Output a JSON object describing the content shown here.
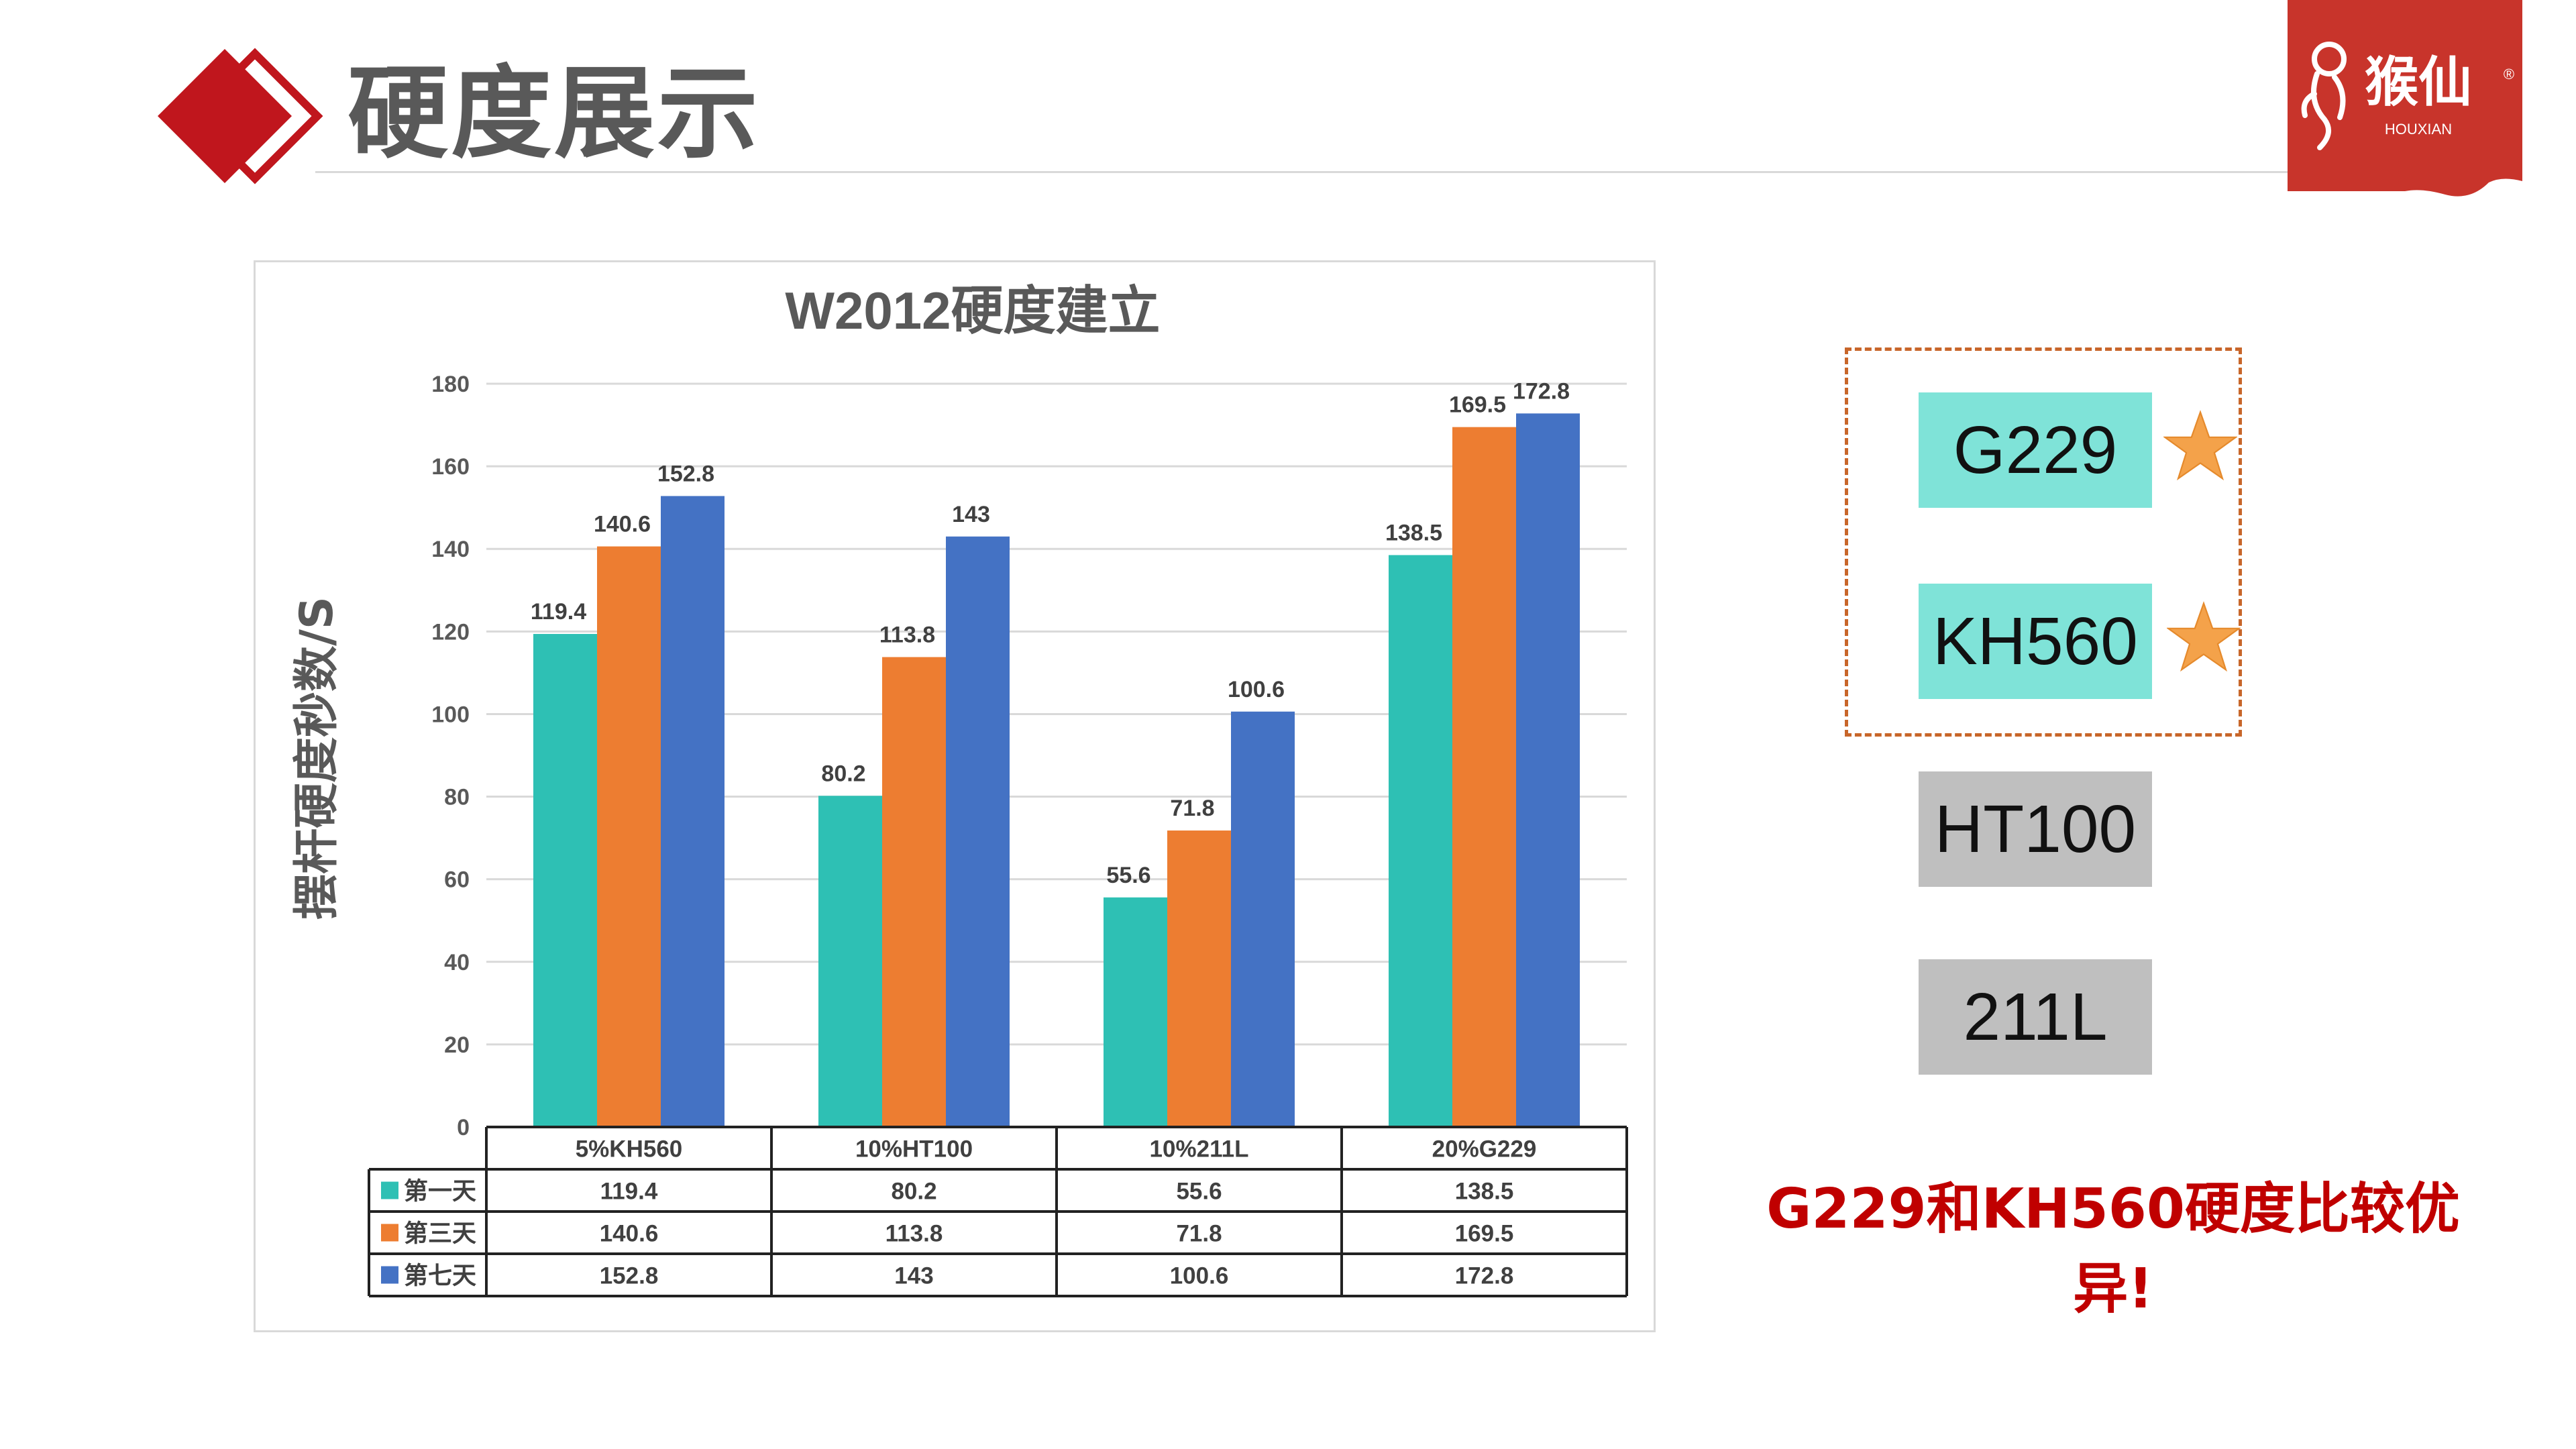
{
  "page": {
    "title": "硬度展示",
    "logo_text": "猴仙",
    "logo_sub": "HOUXIAN",
    "logo_mark": "®",
    "conclusion": "G229和KH560硬度比较优异!"
  },
  "items": [
    {
      "label": "G229",
      "highlighted": true,
      "color": "#7fe3d8"
    },
    {
      "label": "KH560",
      "highlighted": true,
      "color": "#7fe3d8"
    },
    {
      "label": "HT100",
      "highlighted": false,
      "color": "#bfbfbf"
    },
    {
      "label": "211L",
      "highlighted": false,
      "color": "#bfbfbf"
    }
  ],
  "colors": {
    "brand_red": "#c00000",
    "header_diamond_red": "#c0161d",
    "logo_red": "#c8342b",
    "highlight_border": "#c8662a",
    "star": "#f4a24a"
  },
  "chart_data": {
    "type": "bar",
    "title": "W2012硬度建立",
    "ylabel": "摆杆硬度秒数/S",
    "xlabel": "",
    "categories": [
      "5%KH560",
      "10%HT100",
      "10%211L",
      "20%G229"
    ],
    "series": [
      {
        "name": "第一天",
        "color": "#2ec0b4",
        "values": [
          119.4,
          80.2,
          55.6,
          138.5
        ]
      },
      {
        "name": "第三天",
        "color": "#ed7d31",
        "values": [
          140.6,
          113.8,
          71.8,
          169.5
        ]
      },
      {
        "name": "第七天",
        "color": "#4472c4",
        "values": [
          152.8,
          143,
          100.6,
          172.8
        ]
      }
    ],
    "ylim": [
      0,
      180
    ],
    "yticks": [
      0,
      20,
      40,
      60,
      80,
      100,
      120,
      140,
      160,
      180
    ],
    "grid": true,
    "data_labels": true,
    "data_table": true
  }
}
